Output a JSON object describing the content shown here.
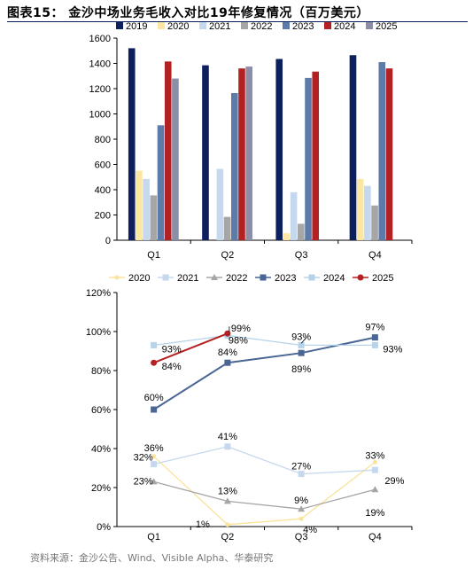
{
  "title": "图表15： 金沙中场业务毛收入对比19年修复情况（百万美元）",
  "source": "资料来源：金沙公告、Wind、Visible Alpha、华泰研究",
  "chart_data": [
    {
      "type": "bar",
      "categories": [
        "Q1",
        "Q2",
        "Q3",
        "Q4"
      ],
      "ylim": [
        0,
        1600
      ],
      "yticks": [
        0,
        200,
        400,
        600,
        800,
        1000,
        1200,
        1400,
        1600
      ],
      "legend_position": "top",
      "grid": false,
      "series": [
        {
          "name": "2019",
          "color": "#0d1f5c",
          "values": [
            1520,
            1385,
            1435,
            1465
          ]
        },
        {
          "name": "2020",
          "color": "#fbe7a1",
          "values": [
            550,
            0,
            55,
            485
          ]
        },
        {
          "name": "2021",
          "color": "#c6d8ee",
          "values": [
            485,
            565,
            380,
            430
          ]
        },
        {
          "name": "2022",
          "color": "#a6a6a6",
          "values": [
            355,
            185,
            130,
            275
          ]
        },
        {
          "name": "2023",
          "color": "#5e7aa8",
          "values": [
            910,
            1165,
            1285,
            1410
          ]
        },
        {
          "name": "2024",
          "color": "#b42123",
          "values": [
            1415,
            1360,
            1335,
            1360
          ]
        },
        {
          "name": "2025",
          "color": "#8c8ea6",
          "values": [
            1280,
            1375,
            null,
            null
          ]
        }
      ]
    },
    {
      "type": "line",
      "categories": [
        "Q1",
        "Q2",
        "Q3",
        "Q4"
      ],
      "ylim": [
        0,
        120
      ],
      "yticks": [
        "0%",
        "20%",
        "40%",
        "60%",
        "80%",
        "100%",
        "120%"
      ],
      "legend_position": "top",
      "grid": false,
      "series": [
        {
          "name": "2020",
          "color": "#fbe39b",
          "marker": "dot",
          "values": [
            36,
            1,
            4,
            33
          ],
          "labels": [
            "36%",
            "1%",
            "4%",
            "33%"
          ]
        },
        {
          "name": "2021",
          "color": "#c6d8ee",
          "marker": "square",
          "values": [
            32,
            41,
            27,
            29
          ],
          "labels": [
            "32%",
            "41%",
            "27%",
            "29%"
          ]
        },
        {
          "name": "2022",
          "color": "#a6a6a6",
          "marker": "triangle",
          "values": [
            23,
            13,
            9,
            19
          ],
          "labels": [
            "23%",
            "13%",
            "9%",
            "19%"
          ]
        },
        {
          "name": "2023",
          "color": "#4a6694",
          "marker": "square",
          "values": [
            60,
            84,
            89,
            97
          ],
          "labels": [
            "60%",
            "84%",
            "89%",
            "97%"
          ]
        },
        {
          "name": "2024",
          "color": "#b7d3ea",
          "marker": "square",
          "values": [
            93,
            98,
            93,
            93
          ],
          "labels": [
            "93%",
            "98%",
            "93%",
            "93%"
          ]
        },
        {
          "name": "2025",
          "color": "#b42123",
          "marker": "dot",
          "values": [
            84,
            99,
            null,
            null
          ],
          "labels": [
            "84%",
            "99%",
            null,
            null
          ]
        }
      ]
    }
  ]
}
